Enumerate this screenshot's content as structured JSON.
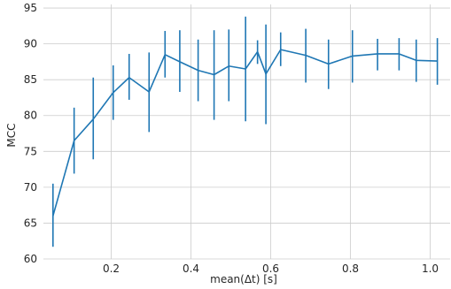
{
  "chart_data": {
    "type": "line",
    "xlabel": "mean(Δt) [s]",
    "ylabel": "MCC",
    "xlim": [
      0.03,
      1.05
    ],
    "ylim": [
      60,
      95.5
    ],
    "x_ticks": [
      0.2,
      0.4,
      0.6,
      0.8,
      1.0
    ],
    "x_tick_labels": [
      "0.2",
      "0.4",
      "0.6",
      "0.8",
      "1.0"
    ],
    "y_ticks": [
      60,
      65,
      70,
      75,
      80,
      85,
      90,
      95
    ],
    "y_tick_labels": [
      "60",
      "65",
      "70",
      "75",
      "80",
      "85",
      "90",
      "95"
    ],
    "grid": true,
    "series": [
      {
        "color": "#1f77b4",
        "x": [
          0.054,
          0.107,
          0.155,
          0.205,
          0.245,
          0.295,
          0.335,
          0.372,
          0.418,
          0.458,
          0.495,
          0.537,
          0.567,
          0.588,
          0.625,
          0.688,
          0.745,
          0.805,
          0.868,
          0.922,
          0.965,
          1.018
        ],
        "y": [
          66.0,
          76.5,
          79.5,
          83.2,
          85.3,
          83.3,
          88.5,
          87.5,
          86.3,
          85.7,
          86.9,
          86.5,
          88.9,
          85.8,
          89.2,
          88.4,
          87.2,
          88.3,
          88.6,
          88.6,
          87.7,
          87.6
        ],
        "err_low": [
          61.7,
          71.9,
          73.9,
          79.4,
          82.2,
          77.7,
          85.3,
          83.3,
          82.0,
          79.4,
          82.0,
          79.2,
          87.2,
          78.8,
          86.9,
          84.6,
          83.7,
          84.6,
          86.3,
          86.3,
          84.7,
          84.3
        ],
        "err_high": [
          70.5,
          81.1,
          85.3,
          87.0,
          88.6,
          88.8,
          91.8,
          91.9,
          90.6,
          91.9,
          92.0,
          93.8,
          90.5,
          92.7,
          91.6,
          92.1,
          90.6,
          91.9,
          90.7,
          90.8,
          90.6,
          90.8
        ]
      }
    ]
  }
}
